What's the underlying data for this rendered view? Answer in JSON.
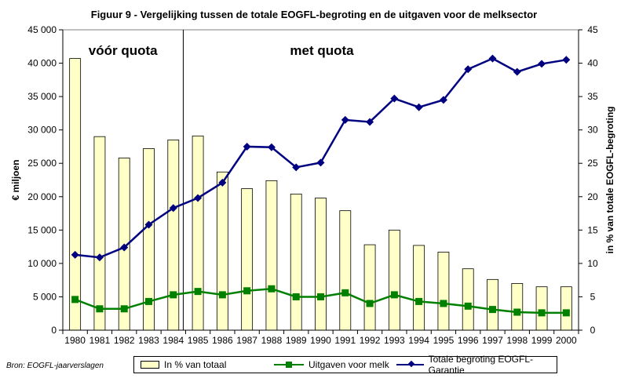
{
  "title": "Figuur 9 - Vergelijking tussen de totale EOGFL-begroting en de uitgaven voor de melksector",
  "source": "Bron: EOGFL-jaarverslagen",
  "colors": {
    "bars": "#ffffc8",
    "melk": "#008000",
    "eogfl": "#000080"
  },
  "chart_data": {
    "type": "bar",
    "categories": [
      "1980",
      "1981",
      "1982",
      "1983",
      "1984",
      "1985",
      "1986",
      "1987",
      "1988",
      "1989",
      "1990",
      "1991",
      "1992",
      "1993",
      "1994",
      "1995",
      "1996",
      "1997",
      "1998",
      "1999",
      "2000"
    ],
    "y_left": {
      "label": "€ miljoen",
      "min": 0,
      "max": 45000,
      "ticks": [
        "0",
        "5 000",
        "10 000",
        "15 000",
        "20 000",
        "25 000",
        "30 000",
        "35 000",
        "40 000",
        "45 000"
      ]
    },
    "y_right": {
      "label": "in % van totale EOGFL-begroting",
      "min": 0,
      "max": 45,
      "ticks": [
        "0",
        "5",
        "10",
        "15",
        "20",
        "25",
        "30",
        "35",
        "40",
        "45"
      ]
    },
    "annotations": [
      "vóór quota",
      "met quota"
    ],
    "series": [
      {
        "name": "In % van totaal",
        "type": "bar",
        "axis": "right",
        "values": [
          40.7,
          29.0,
          25.8,
          27.2,
          28.5,
          29.1,
          23.7,
          21.2,
          22.4,
          20.4,
          19.8,
          17.9,
          12.8,
          15.0,
          12.7,
          11.7,
          9.2,
          7.6,
          7.0,
          6.5,
          6.5
        ]
      },
      {
        "name": "Uitgaven voor melk",
        "type": "line",
        "axis": "left",
        "values": [
          4600,
          3200,
          3200,
          4300,
          5300,
          5800,
          5300,
          5900,
          6200,
          5000,
          5000,
          5600,
          4000,
          5300,
          4300,
          4000,
          3600,
          3100,
          2700,
          2600,
          2600
        ]
      },
      {
        "name": "Totale begroting EOGFL-Garantie",
        "type": "line",
        "axis": "left",
        "values": [
          11300,
          10900,
          12400,
          15800,
          18300,
          19800,
          22100,
          27500,
          27400,
          24400,
          25100,
          31500,
          31200,
          34700,
          33400,
          34500,
          39100,
          40700,
          38700,
          39900,
          40500
        ]
      }
    ]
  }
}
